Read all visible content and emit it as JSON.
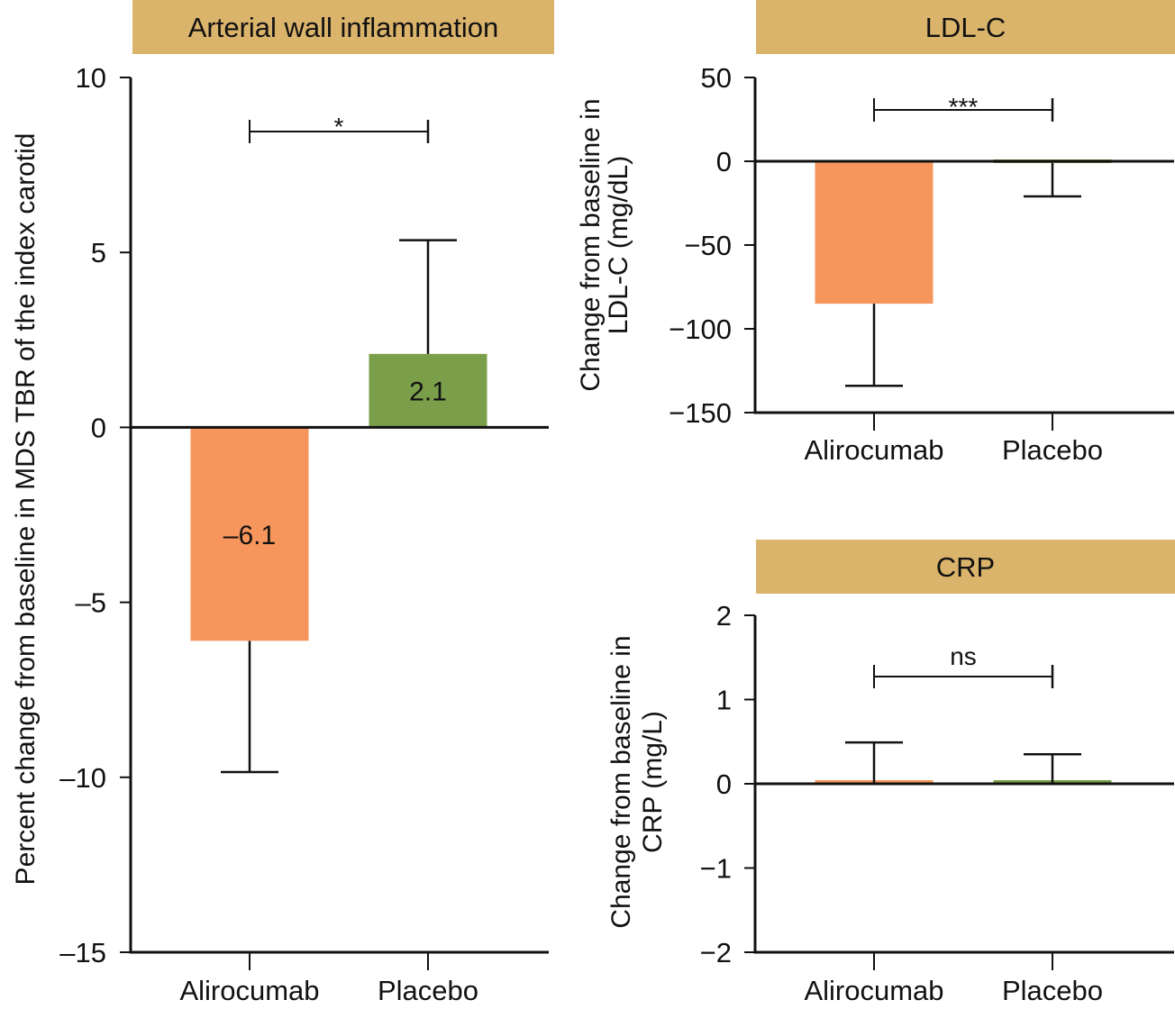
{
  "colors": {
    "header_bg": "#dbb46c",
    "alirocumab": "#f7965c",
    "placebo": "#7a9e4a",
    "axis": "#111111"
  },
  "chart_data": [
    {
      "id": "arterial",
      "type": "bar",
      "title": "Arterial wall inflammation",
      "xlabel": "",
      "ylabel": "Percent change from baseline in MDS TBR of the index carotid",
      "categories": [
        "Alirocumab",
        "Placebo"
      ],
      "values": [
        -6.1,
        2.1
      ],
      "error_bars": [
        -9.85,
        5.35
      ],
      "data_labels": [
        "–6.1",
        "2.1"
      ],
      "ylim": [
        -15,
        10
      ],
      "yticks": [
        10,
        5,
        0,
        -5,
        -10,
        -15
      ],
      "ytick_labels": [
        "10",
        "5",
        "0",
        "–5",
        "–10",
        "–15"
      ],
      "grid": false,
      "significance": "*"
    },
    {
      "id": "ldl",
      "type": "bar",
      "title": "LDL-C",
      "xlabel": "",
      "ylabel": [
        "Change from baseline in",
        "LDL-C (mg/dL)"
      ],
      "categories": [
        "Alirocumab",
        "Placebo"
      ],
      "values": [
        -85,
        -1
      ],
      "error_bars": [
        -134,
        -21
      ],
      "data_labels": [
        "",
        ""
      ],
      "ylim": [
        -150,
        50
      ],
      "yticks": [
        50,
        0,
        -50,
        -100,
        -150
      ],
      "ytick_labels": [
        "50",
        "0",
        "−50",
        "−100",
        "−150"
      ],
      "grid": false,
      "significance": "***"
    },
    {
      "id": "crp",
      "type": "bar",
      "title": "CRP",
      "xlabel": "",
      "ylabel": [
        "Change from baseline in",
        "CRP (mg/L)"
      ],
      "categories": [
        "Alirocumab",
        "Placebo"
      ],
      "values": [
        0.0,
        0.0
      ],
      "error_bars": [
        0.49,
        0.35
      ],
      "data_labels": [
        "",
        ""
      ],
      "ylim": [
        -2,
        2
      ],
      "yticks": [
        2,
        1,
        0,
        -1,
        -2
      ],
      "ytick_labels": [
        "2",
        "1",
        "0",
        "−1",
        "−2"
      ],
      "grid": false,
      "significance": "ns"
    }
  ]
}
